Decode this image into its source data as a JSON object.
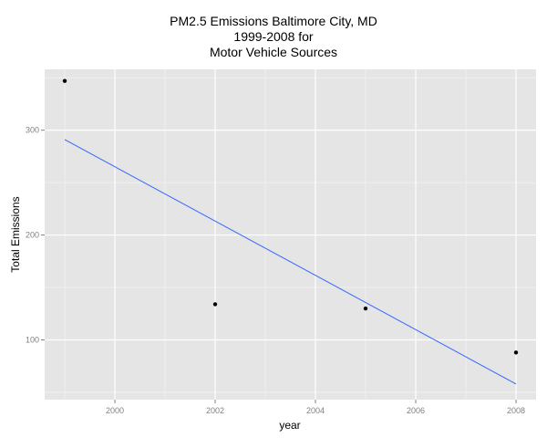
{
  "chart_data": {
    "type": "scatter",
    "title_lines": [
      "PM2.5 Emissions Baltimore City, MD",
      "1999-2008 for",
      "Motor Vehicle Sources"
    ],
    "xlabel": "year",
    "ylabel": "Total Emissions",
    "xlim": [
      1998.6,
      2008.4
    ],
    "ylim": [
      43,
      358
    ],
    "x_ticks": [
      2000,
      2002,
      2004,
      2006,
      2008
    ],
    "x_tick_labels": [
      "2000",
      "2002",
      "2004",
      "2006",
      "2008"
    ],
    "y_ticks": [
      100,
      200,
      300
    ],
    "y_tick_labels": [
      "100",
      "200",
      "300"
    ],
    "grid": true,
    "points": [
      {
        "x": 1999,
        "y": 347
      },
      {
        "x": 2002,
        "y": 134
      },
      {
        "x": 2005,
        "y": 130
      },
      {
        "x": 2008,
        "y": 88
      }
    ],
    "trend_line": {
      "x": [
        1999,
        2008
      ],
      "y": [
        291,
        58
      ]
    },
    "colors": {
      "panel": "#e5e5e5",
      "grid": "#ffffff",
      "point": "#000000",
      "trend": "#3366ff",
      "tick_text": "#7f7f7f"
    }
  }
}
